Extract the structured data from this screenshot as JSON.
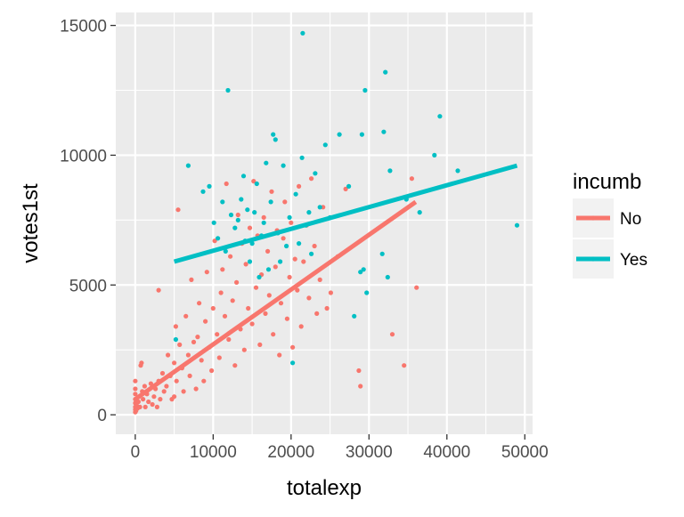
{
  "chart_data": {
    "type": "scatter",
    "title": "",
    "xlabel": "totalexp",
    "ylabel": "votes1st",
    "xlim": [
      -2500,
      51000
    ],
    "ylim": [
      -750,
      15500
    ],
    "x_ticks": [
      0,
      10000,
      20000,
      30000,
      40000,
      50000
    ],
    "y_ticks": [
      0,
      5000,
      10000,
      15000
    ],
    "x_tick_labels": [
      "0",
      "10000",
      "20000",
      "30000",
      "40000",
      "50000"
    ],
    "y_tick_labels": [
      "0",
      "5000",
      "10000",
      "15000"
    ],
    "grid": true,
    "legend": {
      "title": "incumb",
      "position": "right",
      "entries": [
        "No",
        "Yes"
      ]
    },
    "colors": {
      "No": "#F8766D",
      "Yes": "#00BFC4",
      "panel": "#EBEBEB",
      "grid": "#FFFFFF"
    },
    "series": [
      {
        "name": "No",
        "fit_line": [
          [
            0,
            600
          ],
          [
            36000,
            8200
          ]
        ],
        "points": [
          [
            0,
            100
          ],
          [
            0,
            200
          ],
          [
            0,
            300
          ],
          [
            0,
            450
          ],
          [
            0,
            600
          ],
          [
            0,
            800
          ],
          [
            0,
            1000
          ],
          [
            0,
            1300
          ],
          [
            100,
            150
          ],
          [
            200,
            350
          ],
          [
            300,
            250
          ],
          [
            400,
            500
          ],
          [
            500,
            700
          ],
          [
            600,
            300
          ],
          [
            700,
            1900
          ],
          [
            800,
            2000
          ],
          [
            900,
            900
          ],
          [
            1000,
            600
          ],
          [
            1200,
            1100
          ],
          [
            1300,
            300
          ],
          [
            1500,
            800
          ],
          [
            1700,
            500
          ],
          [
            2000,
            1200
          ],
          [
            2200,
            400
          ],
          [
            2400,
            700
          ],
          [
            2600,
            1000
          ],
          [
            2800,
            300
          ],
          [
            3000,
            1300
          ],
          [
            3000,
            4800
          ],
          [
            3200,
            600
          ],
          [
            3500,
            1600
          ],
          [
            3700,
            900
          ],
          [
            4000,
            1100
          ],
          [
            4200,
            2300
          ],
          [
            4500,
            1500
          ],
          [
            4700,
            600
          ],
          [
            5000,
            2000
          ],
          [
            5000,
            700
          ],
          [
            5200,
            3400
          ],
          [
            5300,
            1300
          ],
          [
            5500,
            7900
          ],
          [
            5700,
            2700
          ],
          [
            6000,
            1800
          ],
          [
            6200,
            900
          ],
          [
            6500,
            3800
          ],
          [
            6800,
            2300
          ],
          [
            7000,
            1500
          ],
          [
            7200,
            5200
          ],
          [
            7500,
            2800
          ],
          [
            7800,
            1000
          ],
          [
            8000,
            3000
          ],
          [
            8200,
            4300
          ],
          [
            8500,
            2100
          ],
          [
            8800,
            1300
          ],
          [
            9000,
            3600
          ],
          [
            9200,
            5500
          ],
          [
            9500,
            2600
          ],
          [
            9800,
            1700
          ],
          [
            10000,
            4100
          ],
          [
            10200,
            6700
          ],
          [
            10500,
            3100
          ],
          [
            10800,
            2200
          ],
          [
            11000,
            4700
          ],
          [
            11200,
            5600
          ],
          [
            11500,
            3800
          ],
          [
            11700,
            8900
          ],
          [
            12000,
            2900
          ],
          [
            12200,
            6100
          ],
          [
            12500,
            4400
          ],
          [
            12800,
            1900
          ],
          [
            13000,
            5100
          ],
          [
            13200,
            7700
          ],
          [
            13500,
            3300
          ],
          [
            13700,
            6600
          ],
          [
            14000,
            2500
          ],
          [
            14200,
            5800
          ],
          [
            14500,
            4100
          ],
          [
            14700,
            7200
          ],
          [
            15000,
            3500
          ],
          [
            15200,
            9000
          ],
          [
            15500,
            4900
          ],
          [
            15700,
            6900
          ],
          [
            16000,
            2700
          ],
          [
            16200,
            5400
          ],
          [
            16500,
            7600
          ],
          [
            16700,
            3900
          ],
          [
            17000,
            6300
          ],
          [
            17200,
            4600
          ],
          [
            17500,
            8600
          ],
          [
            17700,
            3100
          ],
          [
            18000,
            5700
          ],
          [
            18200,
            7100
          ],
          [
            18500,
            2300
          ],
          [
            18700,
            4300
          ],
          [
            19000,
            6800
          ],
          [
            19200,
            8200
          ],
          [
            19500,
            3700
          ],
          [
            19800,
            5300
          ],
          [
            20000,
            7400
          ],
          [
            20200,
            2600
          ],
          [
            20500,
            6000
          ],
          [
            20800,
            4800
          ],
          [
            21000,
            8800
          ],
          [
            21300,
            3400
          ],
          [
            21600,
            5900
          ],
          [
            22000,
            7300
          ],
          [
            22300,
            4500
          ],
          [
            22600,
            9100
          ],
          [
            23000,
            6500
          ],
          [
            23300,
            3900
          ],
          [
            23700,
            5200
          ],
          [
            24100,
            8000
          ],
          [
            24600,
            4100
          ],
          [
            25100,
            4700
          ],
          [
            26000,
            6100
          ],
          [
            27000,
            8700
          ],
          [
            28700,
            1700
          ],
          [
            28900,
            1100
          ],
          [
            33000,
            3100
          ],
          [
            34500,
            1900
          ],
          [
            35500,
            9100
          ],
          [
            36100,
            4900
          ]
        ]
      },
      {
        "name": "Yes",
        "fit_line": [
          [
            5000,
            5900
          ],
          [
            49000,
            9600
          ]
        ],
        "points": [
          [
            5200,
            2900
          ],
          [
            6800,
            9600
          ],
          [
            8700,
            8600
          ],
          [
            9500,
            8800
          ],
          [
            10100,
            7400
          ],
          [
            10600,
            6800
          ],
          [
            11200,
            8200
          ],
          [
            11600,
            6300
          ],
          [
            11900,
            12500
          ],
          [
            12300,
            7700
          ],
          [
            12800,
            7200
          ],
          [
            13200,
            7500
          ],
          [
            13600,
            8300
          ],
          [
            13900,
            9200
          ],
          [
            14100,
            6700
          ],
          [
            14400,
            7900
          ],
          [
            14700,
            5900
          ],
          [
            15000,
            6600
          ],
          [
            15300,
            7800
          ],
          [
            15600,
            8900
          ],
          [
            15900,
            5300
          ],
          [
            16200,
            6900
          ],
          [
            16500,
            7400
          ],
          [
            16800,
            9700
          ],
          [
            17100,
            5600
          ],
          [
            17400,
            8200
          ],
          [
            17700,
            10800
          ],
          [
            18000,
            10600
          ],
          [
            18300,
            7000
          ],
          [
            18600,
            5900
          ],
          [
            19000,
            9600
          ],
          [
            19400,
            6500
          ],
          [
            19800,
            7600
          ],
          [
            20200,
            2000
          ],
          [
            20600,
            8500
          ],
          [
            21000,
            6600
          ],
          [
            21400,
            9900
          ],
          [
            21500,
            14700
          ],
          [
            21900,
            7300
          ],
          [
            22300,
            7800
          ],
          [
            22600,
            6200
          ],
          [
            23100,
            9300
          ],
          [
            23700,
            8000
          ],
          [
            24400,
            10400
          ],
          [
            25000,
            7600
          ],
          [
            26200,
            10800
          ],
          [
            27400,
            8800
          ],
          [
            28100,
            3800
          ],
          [
            28900,
            5500
          ],
          [
            29100,
            10800
          ],
          [
            29300,
            5600
          ],
          [
            29500,
            12500
          ],
          [
            29700,
            4700
          ],
          [
            31700,
            6200
          ],
          [
            31900,
            10900
          ],
          [
            32100,
            13200
          ],
          [
            32400,
            5300
          ],
          [
            32700,
            9400
          ],
          [
            34800,
            8300
          ],
          [
            36500,
            7800
          ],
          [
            38400,
            10000
          ],
          [
            39100,
            11500
          ],
          [
            41400,
            9400
          ],
          [
            49000,
            7300
          ]
        ]
      }
    ]
  }
}
